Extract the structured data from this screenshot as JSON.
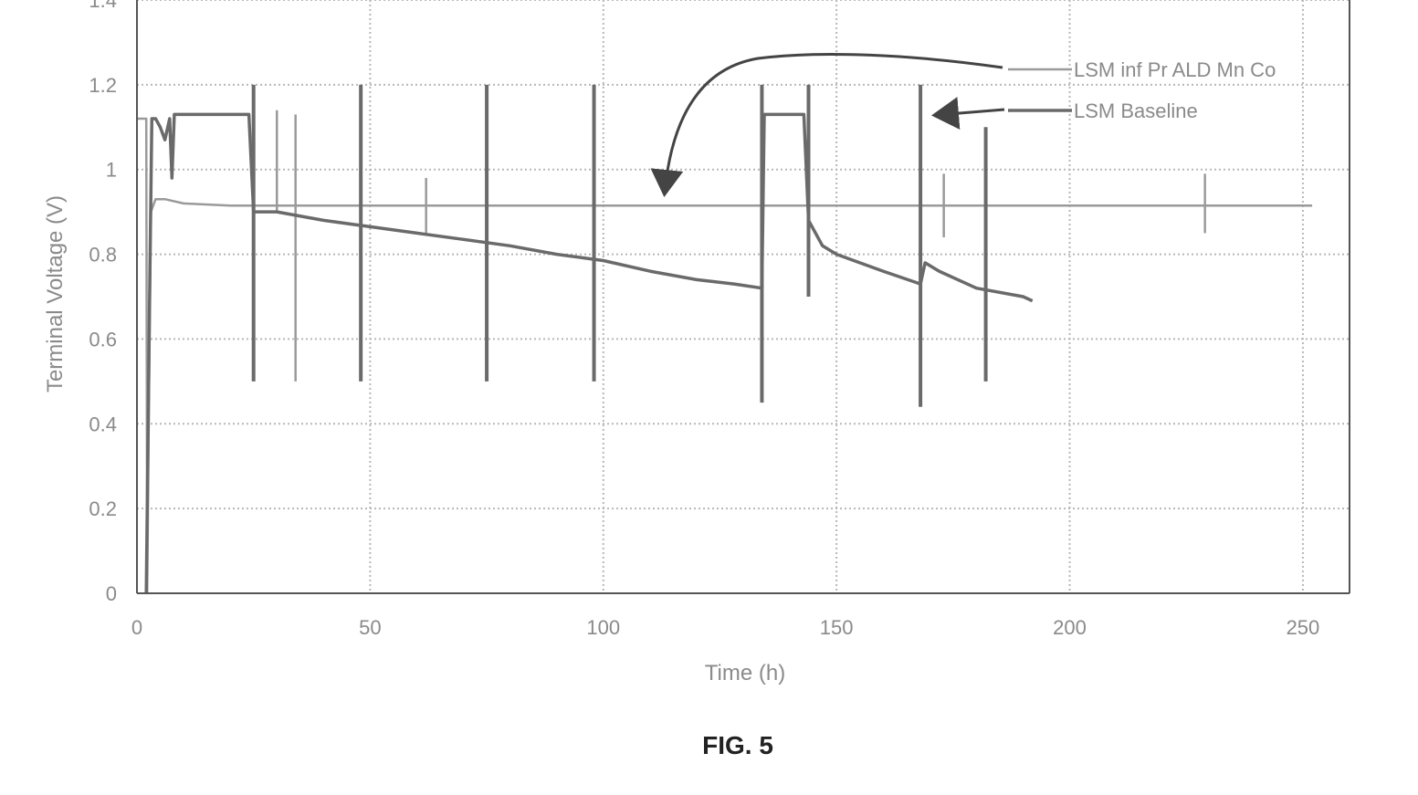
{
  "figure": {
    "caption": "FIG. 5"
  },
  "chart_data": {
    "type": "line",
    "xlabel": "Time (h)",
    "ylabel": "Terminal Voltage (V)",
    "xlim": [
      0,
      260
    ],
    "ylim": [
      0,
      1.4
    ],
    "xticks": [
      0,
      50,
      100,
      150,
      200,
      250
    ],
    "xtick_labels": [
      "0",
      "50",
      "100",
      "150",
      "200",
      "250"
    ],
    "yticks": [
      0,
      0.2,
      0.4,
      0.6,
      0.8,
      1.0,
      1.2,
      1.4
    ],
    "ytick_labels": [
      "0",
      "0.2",
      "0.4",
      "0.6",
      "0.8",
      "1",
      "1.2",
      "1.4"
    ],
    "grid": true,
    "legend_position": "top-right",
    "colors": {
      "series_1": "#9a9a9a",
      "series_2": "#6a6a6a",
      "grid": "#b8b8b8",
      "axis": "#555555"
    },
    "series": [
      {
        "name": "LSM inf Pr ALD Mn Co",
        "x": [
          0,
          2,
          2.2,
          2.6,
          3,
          4,
          6,
          10,
          20,
          30,
          40,
          50,
          60,
          80,
          100,
          120,
          140,
          160,
          180,
          200,
          220,
          240,
          252
        ],
        "y": [
          1.12,
          1.12,
          0.0,
          0.5,
          0.9,
          0.93,
          0.93,
          0.92,
          0.915,
          0.915,
          0.915,
          0.915,
          0.915,
          0.915,
          0.915,
          0.915,
          0.915,
          0.915,
          0.915,
          0.915,
          0.915,
          0.915,
          0.915
        ],
        "spikes": [
          {
            "x": 30,
            "low": 0.9,
            "high": 1.14
          },
          {
            "x": 34,
            "low": 0.5,
            "high": 1.13
          },
          {
            "x": 62,
            "low": 0.85,
            "high": 0.98
          },
          {
            "x": 173,
            "low": 0.84,
            "high": 0.99
          },
          {
            "x": 229,
            "low": 0.85,
            "high": 0.99
          }
        ]
      },
      {
        "name": "LSM Baseline",
        "x": [
          2,
          2.8,
          3.2,
          4,
          5,
          6,
          7,
          7.5,
          8,
          24,
          25,
          30,
          40,
          50,
          60,
          70,
          80,
          90,
          100,
          110,
          120,
          128,
          134,
          134.5,
          143,
          144,
          147,
          150,
          160,
          168,
          169,
          172,
          180,
          190,
          192
        ],
        "y": [
          0.0,
          0.78,
          1.12,
          1.12,
          1.1,
          1.07,
          1.12,
          0.98,
          1.13,
          1.13,
          0.9,
          0.9,
          0.88,
          0.865,
          0.85,
          0.835,
          0.82,
          0.8,
          0.785,
          0.76,
          0.74,
          0.73,
          0.72,
          1.13,
          1.13,
          0.88,
          0.82,
          0.8,
          0.76,
          0.73,
          0.78,
          0.76,
          0.72,
          0.7,
          0.69
        ],
        "spikes": [
          {
            "x": 25,
            "low": 0.5,
            "high": 1.2
          },
          {
            "x": 48,
            "low": 0.5,
            "high": 1.2
          },
          {
            "x": 75,
            "low": 0.5,
            "high": 1.2
          },
          {
            "x": 98,
            "low": 0.5,
            "high": 1.2
          },
          {
            "x": 134,
            "low": 0.45,
            "high": 1.2
          },
          {
            "x": 144,
            "low": 0.7,
            "high": 1.2
          },
          {
            "x": 168,
            "low": 0.44,
            "high": 1.2
          },
          {
            "x": 182,
            "low": 0.5,
            "high": 1.1
          }
        ]
      }
    ]
  }
}
